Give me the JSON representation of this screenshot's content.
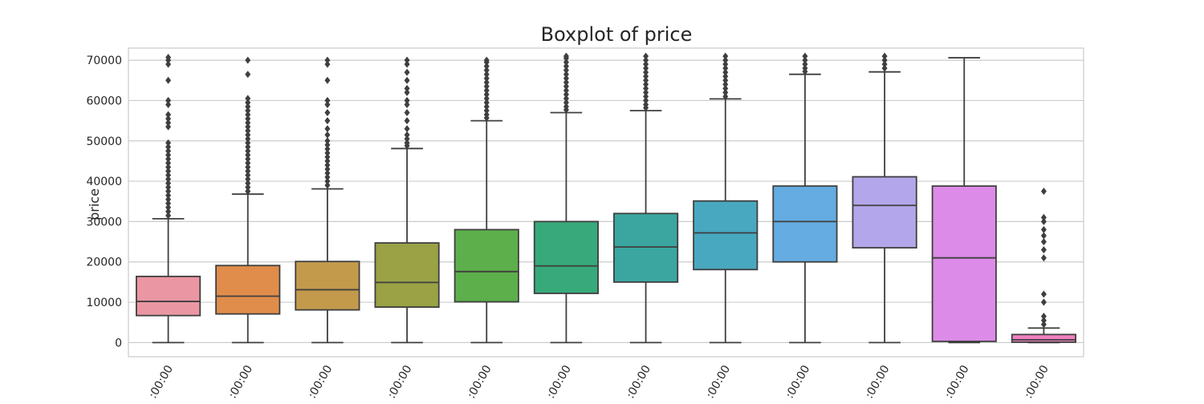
{
  "chart_data": {
    "type": "boxplot",
    "title": "Boxplot of price",
    "xlabel": "",
    "ylabel": "price",
    "ylim": [
      -3500,
      73000
    ],
    "yticks": [
      0,
      10000,
      20000,
      30000,
      40000,
      50000,
      60000,
      70000
    ],
    "grid": true,
    "categories": [
      ":00:00",
      ":00:00",
      ":00:00",
      ":00:00",
      ":00:00",
      ":00:00",
      ":00:00",
      ":00:00",
      ":00:00",
      ":00:00",
      ":00:00",
      ":00:00"
    ],
    "boxes": [
      {
        "color": "#ea96a3",
        "q1": 6700,
        "median": 10200,
        "q3": 16400,
        "whislo": 0,
        "whishi": 30700,
        "fliers": [
          31500,
          32500,
          33500,
          34500,
          35500,
          36500,
          37500,
          38500,
          39500,
          40500,
          41500,
          42500,
          43500,
          44500,
          45500,
          46500,
          47500,
          48500,
          49500,
          53500,
          54500,
          55500,
          56500,
          59000,
          60000,
          65000,
          69000,
          70000,
          70700
        ]
      },
      {
        "color": "#e08d4b",
        "q1": 7100,
        "median": 11500,
        "q3": 19100,
        "whislo": 0,
        "whishi": 36800,
        "fliers": [
          37500,
          38500,
          39500,
          40500,
          41500,
          42500,
          43500,
          44500,
          45500,
          46500,
          47500,
          48500,
          49500,
          50500,
          51500,
          52500,
          53500,
          54500,
          55500,
          56500,
          57500,
          58500,
          59500,
          60500,
          66500,
          70000
        ]
      },
      {
        "color": "#c39a4c",
        "q1": 8100,
        "median": 13100,
        "q3": 20100,
        "whislo": 0,
        "whishi": 38100,
        "fliers": [
          39000,
          40000,
          41000,
          42000,
          43000,
          44000,
          45000,
          46000,
          47000,
          48000,
          49000,
          50000,
          51500,
          53000,
          55000,
          57000,
          59000,
          60000,
          65000,
          69000,
          70000
        ]
      },
      {
        "color": "#9aa245",
        "q1": 8800,
        "median": 14900,
        "q3": 24700,
        "whislo": 0,
        "whishi": 48100,
        "fliers": [
          48800,
          49500,
          50500,
          51500,
          53000,
          55000,
          57000,
          59000,
          60000,
          62000,
          63000,
          65000,
          67000,
          69000,
          70000
        ]
      },
      {
        "color": "#5caf4a",
        "q1": 10100,
        "median": 17600,
        "q3": 28000,
        "whislo": 0,
        "whishi": 55000,
        "fliers": [
          55700,
          56500,
          57500,
          58500,
          59500,
          60500,
          61500,
          62500,
          63500,
          64500,
          65500,
          66500,
          67500,
          68500,
          69500,
          70000
        ]
      },
      {
        "color": "#38a97a",
        "q1": 12200,
        "median": 19000,
        "q3": 30000,
        "whislo": 0,
        "whishi": 57000,
        "fliers": [
          57700,
          58500,
          59500,
          60500,
          61500,
          62500,
          63500,
          64500,
          65500,
          66500,
          67500,
          68500,
          69500,
          70500,
          71000
        ]
      },
      {
        "color": "#3ba6a0",
        "q1": 15000,
        "median": 23700,
        "q3": 32000,
        "whislo": 0,
        "whishi": 57500,
        "fliers": [
          58200,
          59000,
          60000,
          61000,
          62000,
          63000,
          64000,
          65000,
          66000,
          67000,
          68000,
          69000,
          70000,
          71000
        ]
      },
      {
        "color": "#48a8bf",
        "q1": 18100,
        "median": 27200,
        "q3": 35100,
        "whislo": 0,
        "whishi": 60400,
        "fliers": [
          61000,
          62000,
          63000,
          64000,
          65000,
          66000,
          67000,
          68000,
          69000,
          70000,
          71000
        ]
      },
      {
        "color": "#64ace2",
        "q1": 20000,
        "median": 30000,
        "q3": 38800,
        "whislo": 0,
        "whishi": 66500,
        "fliers": [
          67200,
          68000,
          69000,
          70000,
          71000
        ]
      },
      {
        "color": "#b4a6ea",
        "q1": 23500,
        "median": 34000,
        "q3": 41100,
        "whislo": 0,
        "whishi": 67100,
        "fliers": [
          68000,
          69000,
          70000,
          71000
        ]
      },
      {
        "color": "#dd8be8",
        "q1": 300,
        "median": 21000,
        "q3": 38800,
        "whislo": 0,
        "whishi": 70600,
        "fliers": []
      },
      {
        "color": "#ef80c0",
        "q1": 100,
        "median": 700,
        "q3": 2000,
        "whislo": 0,
        "whishi": 3600,
        "fliers": [
          4500,
          5500,
          6500,
          10000,
          12000,
          21000,
          23000,
          25000,
          26500,
          28000,
          30000,
          31000,
          37500
        ]
      }
    ]
  }
}
